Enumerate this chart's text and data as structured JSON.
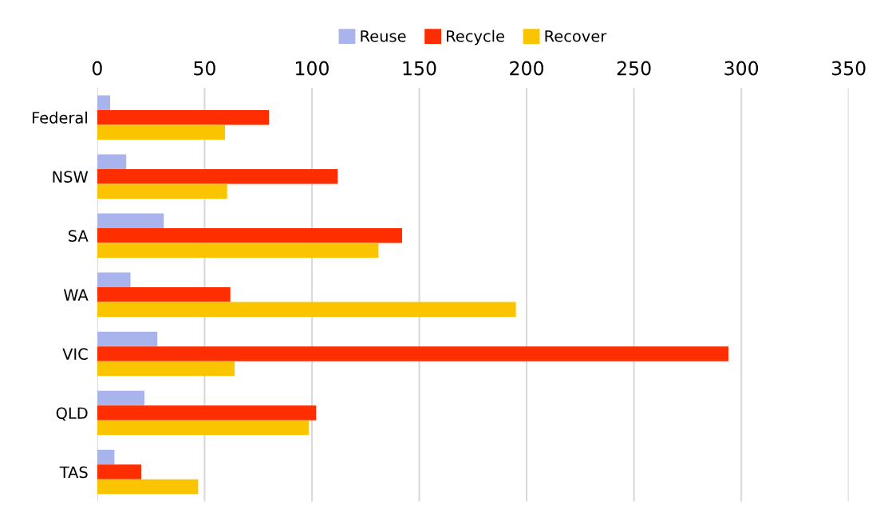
{
  "chart_data": {
    "type": "bar",
    "orientation": "horizontal",
    "categories": [
      "Federal",
      "NSW",
      "SA",
      "WA",
      "VIC",
      "QLD",
      "TAS"
    ],
    "series": [
      {
        "name": "Reuse",
        "color": "#aab4ec",
        "values": [
          6,
          13.5,
          31,
          15.5,
          28,
          22,
          8
        ]
      },
      {
        "name": "Recycle",
        "color": "#ff2e00",
        "values": [
          80,
          112,
          142,
          62,
          294,
          102,
          20.5
        ]
      },
      {
        "name": "Recover",
        "color": "#fbc400",
        "values": [
          59.5,
          60.5,
          131,
          195,
          64,
          98.5,
          47
        ]
      }
    ],
    "xlim": [
      0,
      350
    ],
    "xticks": [
      0,
      50,
      100,
      150,
      200,
      250,
      300,
      350
    ],
    "grid": "x",
    "legend": "top"
  }
}
